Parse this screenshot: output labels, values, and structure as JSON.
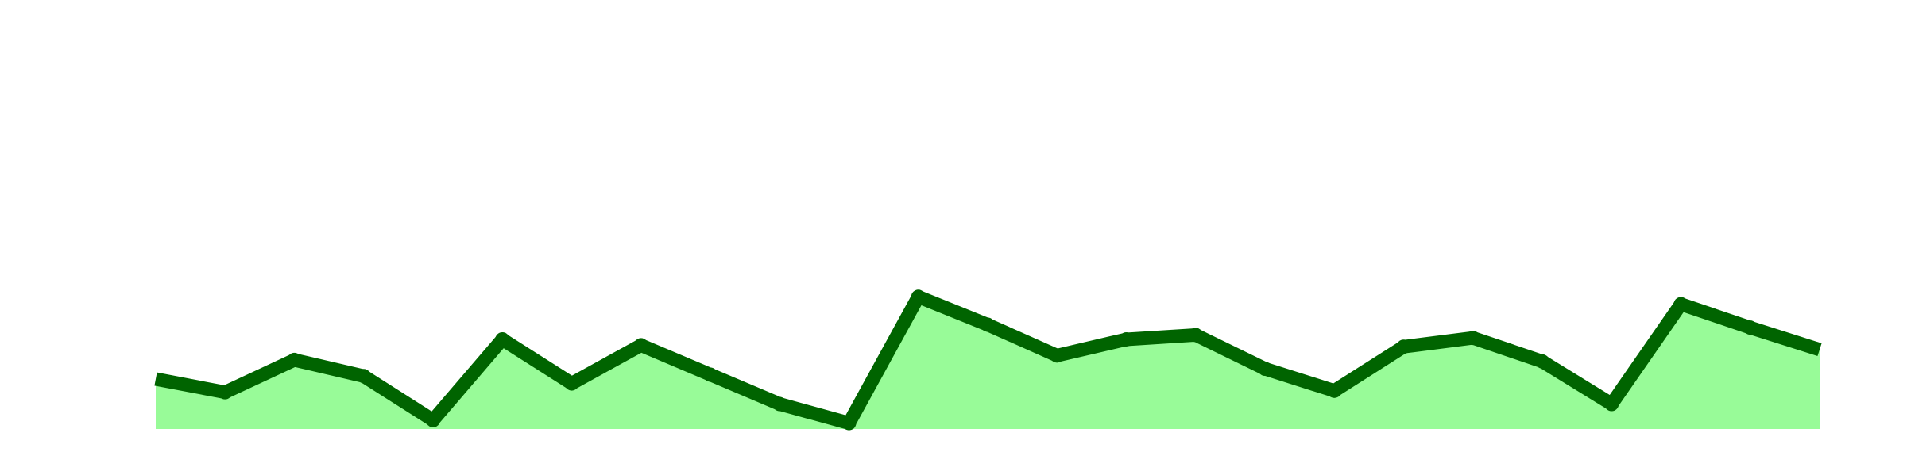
{
  "chart_data": {
    "type": "area",
    "title": "",
    "xlabel": "",
    "ylabel": "",
    "grid": false,
    "x": [
      0,
      1,
      2,
      3,
      4,
      5,
      6,
      7,
      8,
      9,
      10,
      11,
      12,
      13,
      14,
      15,
      16,
      17,
      18,
      19,
      20,
      21,
      22,
      23,
      24
    ],
    "series": [
      {
        "values": [
          10.2,
          9.3,
          11.5,
          10.4,
          7.4,
          12.9,
          9.9,
          12.5,
          10.5,
          8.5,
          7.2,
          15.8,
          13.9,
          11.8,
          12.9,
          13.2,
          10.9,
          9.4,
          12.4,
          13.0,
          11.4,
          8.5,
          15.3,
          13.7,
          12.2
        ],
        "line_color": "#006400",
        "fill_color": "#98fb98"
      }
    ],
    "ylim": [
      6.8,
      36.0
    ]
  }
}
